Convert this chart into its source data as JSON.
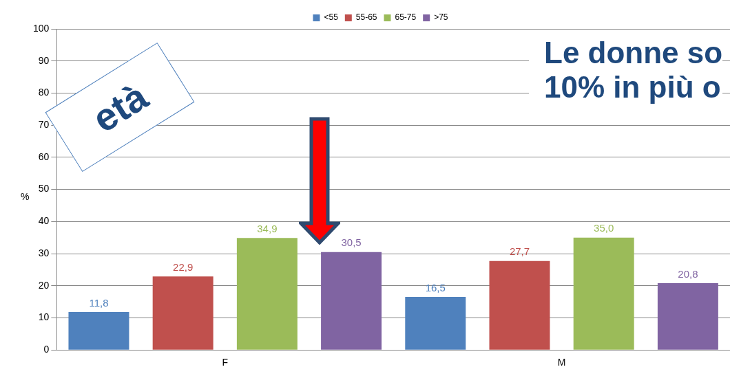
{
  "chart_data": {
    "type": "bar",
    "ylabel": "%",
    "categories": [
      "F",
      "M"
    ],
    "series": [
      {
        "name": "<55",
        "color": "#4f81bd",
        "values": [
          11.8,
          16.5
        ],
        "value_labels": [
          "11,8",
          "16,5"
        ]
      },
      {
        "name": "55-65",
        "color": "#c0504d",
        "values": [
          22.9,
          27.7
        ],
        "value_labels": [
          "22,9",
          "27,7"
        ]
      },
      {
        "name": "65-75",
        "color": "#9bbb59",
        "values": [
          34.9,
          35.0
        ],
        "value_labels": [
          "34,9",
          "35,0"
        ]
      },
      {
        "name": ">75",
        "color": "#8064a2",
        "values": [
          30.5,
          20.8
        ],
        "value_labels": [
          "30,5",
          "20,8"
        ]
      }
    ],
    "ylim": [
      0,
      100
    ],
    "yticks": [
      0,
      10,
      20,
      30,
      40,
      50,
      60,
      70,
      80,
      90,
      100
    ],
    "grid": "y",
    "legend": "top",
    "annotations": [
      "età",
      "Le donne so\n10% in più o"
    ]
  }
}
